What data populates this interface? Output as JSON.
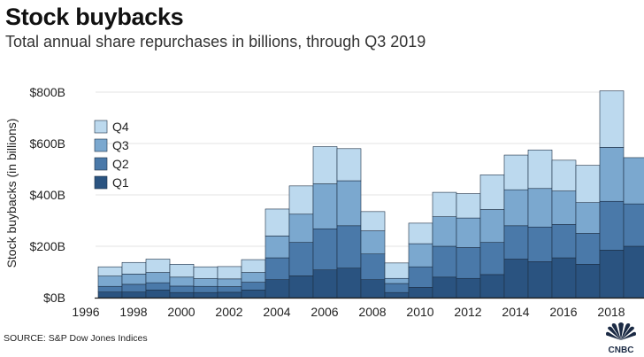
{
  "header": {
    "title": "Stock buybacks",
    "subtitle": "Total annual share repurchases in billions, through Q3 2019"
  },
  "footer": {
    "source": "SOURCE: S&P Dow Jones Indices",
    "logo_text": "CNBC"
  },
  "colors": {
    "Q1": "#2a5380",
    "Q2": "#4a79a9",
    "Q3": "#7ba8cf",
    "Q4": "#bcd9ee",
    "grid": "#e3e3e3",
    "axis": "#222222"
  },
  "chart_data": {
    "type": "bar",
    "stacked": true,
    "title": "",
    "xlabel": "",
    "ylabel": "Stock buybacks (in billions)",
    "ylim": [
      0,
      800
    ],
    "y_ticks": [
      0,
      200,
      400,
      600,
      800
    ],
    "y_tick_labels": [
      "$0B",
      "$200B",
      "$400B",
      "$600B",
      "$800B"
    ],
    "x_tick_labels": [
      "1996",
      "1998",
      "2000",
      "2002",
      "2004",
      "2006",
      "2008",
      "2010",
      "2012",
      "2014",
      "2016",
      "2018"
    ],
    "legend_position": "top-left",
    "legend_order": [
      "Q4",
      "Q3",
      "Q2",
      "Q1"
    ],
    "grid": true,
    "categories": [
      "1997",
      "1998",
      "1999",
      "2000",
      "2001",
      "2002",
      "2003",
      "2004",
      "2005",
      "2006",
      "2007",
      "2008",
      "2009",
      "2010",
      "2011",
      "2012",
      "2013",
      "2014",
      "2015",
      "2016",
      "2017",
      "2018",
      "2019"
    ],
    "series": [
      {
        "name": "Q1",
        "values": [
          22,
          22,
          30,
          20,
          20,
          21,
          30,
          70,
          85,
          108,
          115,
          70,
          20,
          40,
          80,
          75,
          90,
          150,
          140,
          155,
          130,
          185,
          200
        ]
      },
      {
        "name": "Q2",
        "values": [
          22,
          30,
          28,
          25,
          24,
          22,
          30,
          85,
          130,
          160,
          165,
          100,
          35,
          80,
          120,
          120,
          125,
          130,
          135,
          130,
          120,
          190,
          165
        ]
      },
      {
        "name": "Q3",
        "values": [
          40,
          40,
          40,
          35,
          30,
          30,
          38,
          85,
          110,
          175,
          175,
          90,
          20,
          90,
          115,
          115,
          128,
          140,
          150,
          130,
          120,
          210,
          180
        ]
      },
      {
        "name": "Q4",
        "values": [
          36,
          45,
          52,
          50,
          46,
          48,
          50,
          105,
          110,
          145,
          125,
          75,
          60,
          80,
          95,
          95,
          135,
          135,
          150,
          120,
          145,
          220,
          0
        ]
      }
    ]
  }
}
